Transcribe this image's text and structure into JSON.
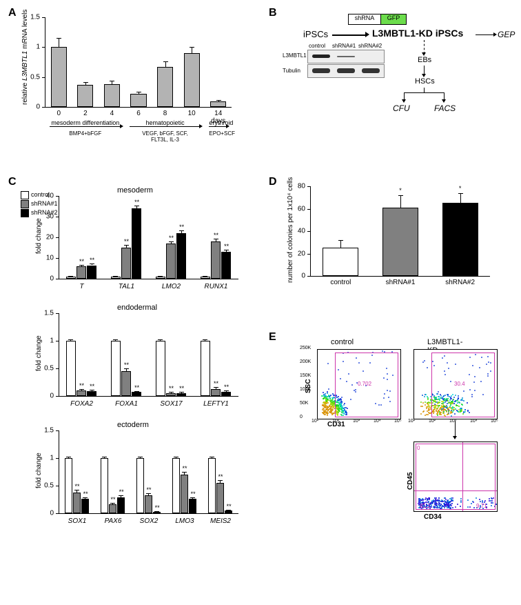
{
  "labels": {
    "A": "A",
    "B": "B",
    "C": "C",
    "D": "D",
    "E": "E"
  },
  "panelA": {
    "type": "bar",
    "ylabel": "relative L3MBTL1 mRNA levels",
    "ylabel_html": "relative <i>L3MBTL1</i> mRNA levels",
    "ylim": [
      0,
      1.5
    ],
    "yticks": [
      0,
      0.5,
      1.0,
      1.5
    ],
    "categories": [
      "0",
      "2",
      "4",
      "6",
      "8",
      "10",
      "14 days"
    ],
    "values": [
      1.0,
      0.37,
      0.38,
      0.22,
      0.67,
      0.9,
      0.09
    ],
    "errors": [
      0.15,
      0.05,
      0.06,
      0.03,
      0.09,
      0.1,
      0.02
    ],
    "bar_color": "#b3b3b3",
    "phase_labels": [
      "mesoderm differentiation",
      "hematopoietic",
      "erythroid"
    ],
    "phase_sub": [
      "BMP4+bFGF",
      "VEGF, bFGF, SCF,\nFLT3L, IL-3",
      "EPO+SCF"
    ]
  },
  "panelB": {
    "top_labels": {
      "shRNA": "shRNA",
      "GFP": "GFP"
    },
    "iPSCs": "iPSCs",
    "kd": "L3MBTL1-KD iPSCs",
    "gep": "GEP",
    "ebs": "EBs",
    "hsc": "HSCs",
    "cfu": "CFU",
    "facs": "FACS",
    "wb": {
      "lanes": [
        "control",
        "shRNA#1",
        "shRNA#2"
      ],
      "rows": [
        "L3MBTL1",
        "Tubulin"
      ]
    }
  },
  "panelC": {
    "legend": [
      "control",
      "shRNA#1",
      "shRNA#2"
    ],
    "legend_colors": [
      "#ffffff",
      "#808080",
      "#000000"
    ],
    "charts": [
      {
        "title": "mesoderm",
        "ylabel": "fold change",
        "ylim": [
          0,
          40
        ],
        "yticks": [
          0,
          10,
          20,
          30,
          40
        ],
        "groups": [
          "T",
          "TAL1",
          "LMO2",
          "RUNX1"
        ],
        "series": [
          [
            1,
            1,
            1,
            1
          ],
          [
            6,
            15,
            17,
            18
          ],
          [
            6.5,
            34,
            22,
            13
          ]
        ],
        "errors": [
          [
            0.2,
            0.2,
            0.2,
            0.2
          ],
          [
            0.8,
            1.2,
            1.0,
            1.2
          ],
          [
            0.8,
            1.5,
            1.2,
            1.0
          ]
        ],
        "sig": [
          [
            "",
            "**",
            "**"
          ],
          [
            "",
            "**",
            "**"
          ],
          [
            "",
            "**",
            "**"
          ],
          [
            "",
            "**",
            "**"
          ]
        ]
      },
      {
        "title": "endodermal",
        "ylabel": "fold change",
        "ylim": [
          0,
          1.5
        ],
        "yticks": [
          0,
          0.5,
          1.0,
          1.5
        ],
        "groups": [
          "FOXA2",
          "FOXA1",
          "SOX17",
          "LEFTY1"
        ],
        "series": [
          [
            1,
            1,
            1,
            1
          ],
          [
            0.1,
            0.45,
            0.05,
            0.13
          ],
          [
            0.09,
            0.07,
            0.05,
            0.08
          ]
        ],
        "errors": [
          [
            0.02,
            0.02,
            0.02,
            0.02
          ],
          [
            0.03,
            0.05,
            0.02,
            0.03
          ],
          [
            0.02,
            0.02,
            0.02,
            0.02
          ]
        ],
        "sig": [
          [
            "",
            "**",
            "**"
          ],
          [
            "",
            "**",
            "**"
          ],
          [
            "",
            "**",
            "**"
          ],
          [
            "",
            "**",
            "**"
          ]
        ]
      },
      {
        "title": "ectoderm",
        "ylabel": "fold change",
        "ylim": [
          0,
          1.5
        ],
        "yticks": [
          0,
          0.5,
          1.0,
          1.5
        ],
        "groups": [
          "SOX1",
          "PAX6",
          "SOX2",
          "LMO3",
          "MEIS2"
        ],
        "series": [
          [
            1,
            1,
            1,
            1,
            1
          ],
          [
            0.38,
            0.16,
            0.33,
            0.7,
            0.55
          ],
          [
            0.26,
            0.29,
            0.03,
            0.26,
            0.05
          ]
        ],
        "errors": [
          [
            0.02,
            0.02,
            0.02,
            0.02,
            0.02
          ],
          [
            0.04,
            0.03,
            0.03,
            0.05,
            0.05
          ],
          [
            0.03,
            0.03,
            0.01,
            0.03,
            0.01
          ]
        ],
        "sig": [
          [
            "",
            "**",
            "**"
          ],
          [
            "",
            "**",
            "**"
          ],
          [
            "",
            "**",
            "**"
          ],
          [
            "",
            "**",
            "**"
          ],
          [
            "",
            "**",
            "**"
          ]
        ]
      }
    ]
  },
  "panelD": {
    "type": "bar",
    "ylabel": "number of colonies per 1x10⁴ cells",
    "ylim": [
      0,
      80
    ],
    "yticks": [
      0,
      20,
      40,
      60,
      80
    ],
    "categories": [
      "control",
      "shRNA#1",
      "shRNA#2"
    ],
    "values": [
      25,
      61,
      65
    ],
    "errors": [
      7,
      11,
      9
    ],
    "colors": [
      "#ffffff",
      "#808080",
      "#000000"
    ],
    "sig": [
      "",
      "*",
      "*"
    ]
  },
  "panelE": {
    "titles": [
      "control",
      "L3MBTL1-KD"
    ],
    "axis_y": "SSC",
    "axis_x": "CD31",
    "gate_vals": [
      "0.702",
      "30.4"
    ],
    "ticks": [
      "0",
      "50K",
      "100K",
      "150K",
      "200K",
      "250K"
    ],
    "xticks": [
      "10¹",
      "10²",
      "10³",
      "10⁴",
      "10⁵"
    ],
    "sub": {
      "axis_y": "CD45",
      "axis_x": "CD34",
      "vals": [
        "81.2",
        "9.71"
      ]
    }
  }
}
